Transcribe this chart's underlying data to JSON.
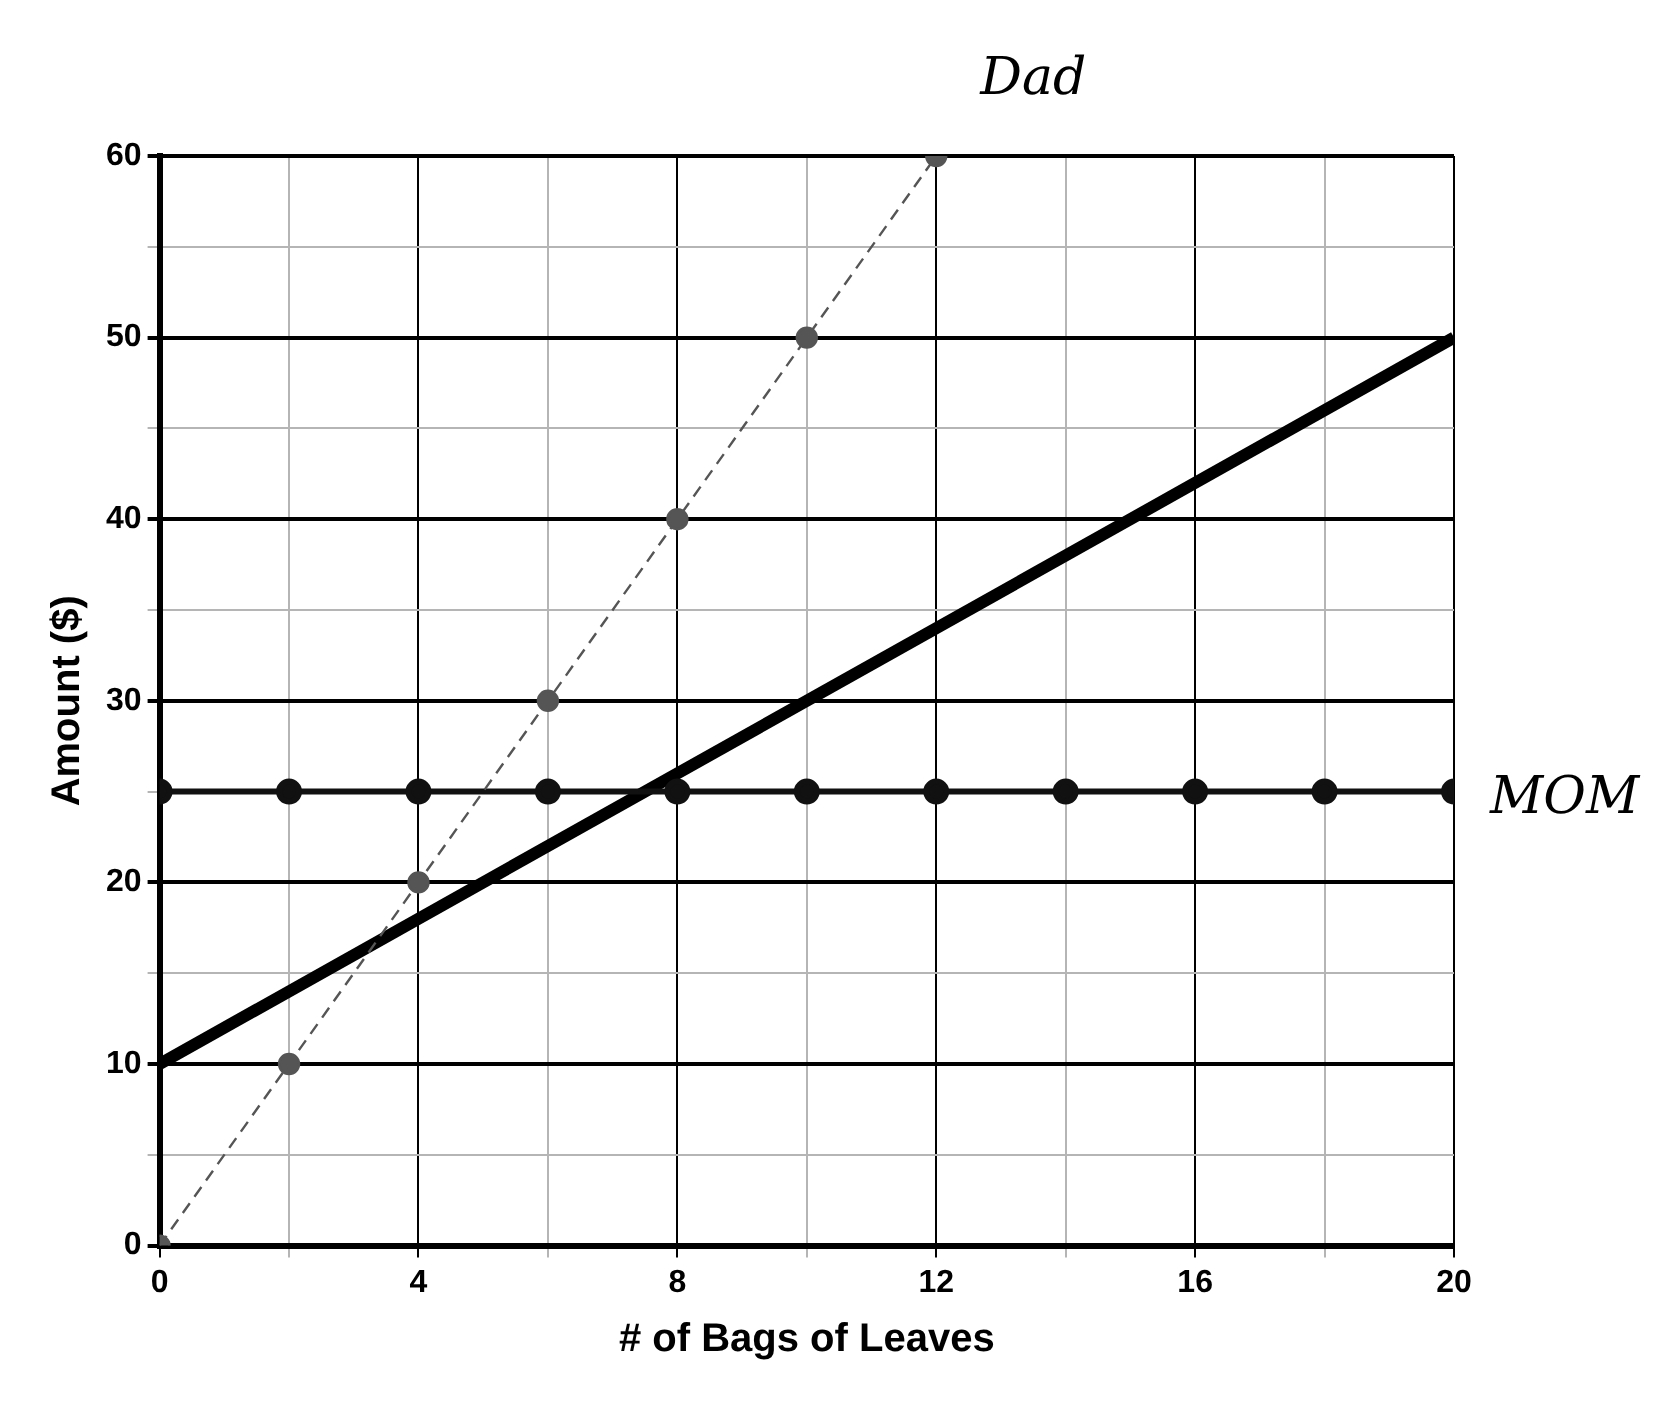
{
  "chart_data": {
    "type": "line",
    "xlabel": "# of Bags of Leaves",
    "ylabel": "Amount ($)",
    "xlim": [
      0,
      20
    ],
    "xticks": [
      0,
      {
        "value": 2,
        "label": null
      },
      4,
      {
        "value": 6,
        "label": null
      },
      8,
      {
        "value": 10,
        "label": null
      },
      12,
      {
        "value": 14,
        "label": null
      },
      16,
      {
        "value": 18,
        "label": null
      },
      20
    ],
    "ylim": [
      0,
      60
    ],
    "yticks": [
      0,
      {
        "value": 5,
        "label": null
      },
      10,
      {
        "value": 15,
        "label": null
      },
      20,
      {
        "value": 25,
        "label": null
      },
      30,
      {
        "value": 35,
        "label": null
      },
      40,
      {
        "value": 45,
        "label": null
      },
      50,
      {
        "value": 55,
        "label": null
      },
      60
    ],
    "grid": true,
    "legend": false,
    "series": [
      {
        "name": "Dad",
        "color": "#555555",
        "x": [
          0,
          2,
          4,
          6,
          8,
          10,
          12
        ],
        "values": [
          0,
          10,
          20,
          30,
          40,
          50,
          60
        ],
        "marker": "circle",
        "line_style": "dashed"
      },
      {
        "name": "MOM",
        "color": "#111111",
        "x": [
          0,
          2,
          4,
          6,
          8,
          10,
          12,
          14,
          16,
          18,
          20
        ],
        "values": [
          25,
          25,
          25,
          25,
          25,
          25,
          25,
          25,
          25,
          25,
          25
        ],
        "marker": "circle",
        "line_style": "solid"
      },
      {
        "color": "#000000",
        "x": [
          0,
          20
        ],
        "values": [
          10,
          50
        ],
        "marker": "none",
        "line_style": "solid"
      }
    ]
  }
}
